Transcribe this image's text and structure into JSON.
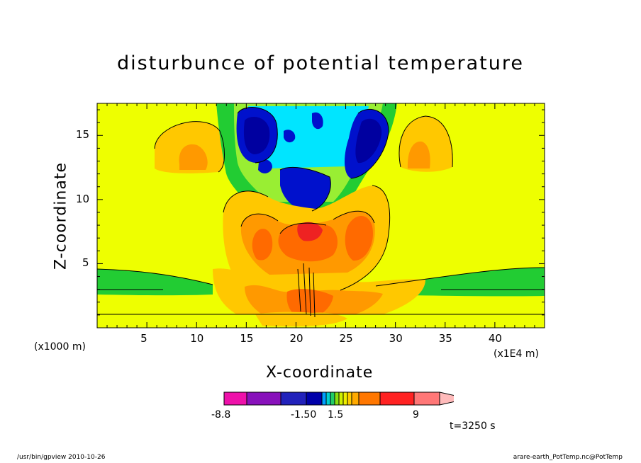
{
  "chart_data": {
    "type": "heatmap",
    "title": "disturbunce of potential temperature",
    "xlabel": "X-coordinate",
    "ylabel": "Z-coordinate",
    "x_unit": "(x1E4 m)",
    "z_unit": "(x1000 m)",
    "x_ticks": [
      "5",
      "10",
      "15",
      "20",
      "25",
      "30",
      "35",
      "40"
    ],
    "y_ticks": [
      "5",
      "10",
      "15"
    ],
    "xlim": [
      0,
      45
    ],
    "ylim": [
      0,
      17.5
    ],
    "colorbar": {
      "labels": [
        "-8.8",
        "-1.50",
        "1.5",
        "9"
      ],
      "colors": [
        "#ee11aa",
        "#8811bb",
        "#2222bb",
        "#0000aa",
        "#00a0ff",
        "#00d0d0",
        "#22cc66",
        "#88e010",
        "#d0f000",
        "#eeee00",
        "#ffcc00",
        "#ffaa00",
        "#ff7700",
        "#ff2222",
        "#ff7777",
        "#ffbbbb"
      ]
    },
    "palette": {
      "background": "#eeff00",
      "light_orange": "#ffc800",
      "orange": "#ff9900",
      "dark_orange": "#ff6a00",
      "red": "#ee2222",
      "green": "#22cc33",
      "light_green": "#99ee33",
      "cyan": "#00e5ff",
      "blue": "#0011cc",
      "dark_blue": "#0000a0"
    }
  },
  "annotations": {
    "time": "t=3250 s",
    "footer_left": "/usr/bin/gpview   2010-10-26",
    "footer_right": "arare-earth_PotTemp.nc@PotTemp"
  }
}
